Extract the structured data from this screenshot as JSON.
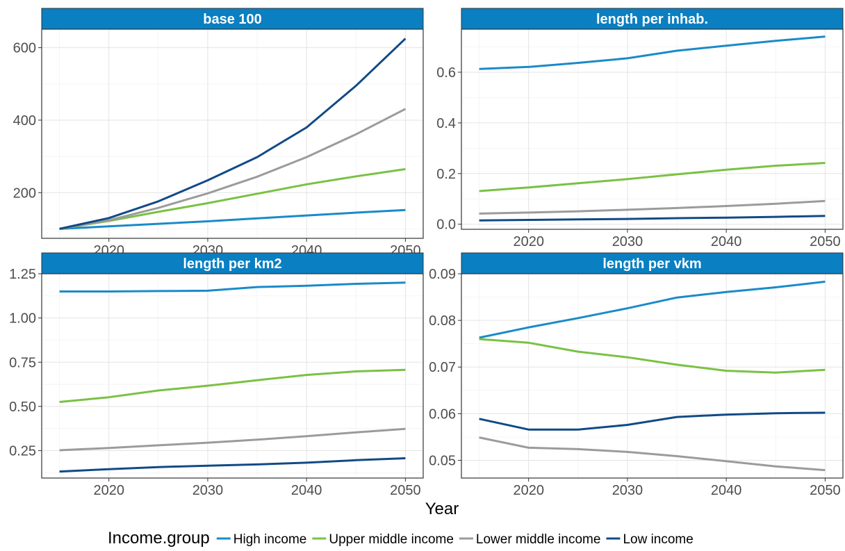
{
  "chart_data": {
    "type": "line",
    "facet_layout": "2x2",
    "xlabel": "Year",
    "x": [
      2015,
      2020,
      2025,
      2030,
      2035,
      2040,
      2045,
      2050
    ],
    "x_ticks": [
      2020,
      2030,
      2040,
      2050
    ],
    "xlim": [
      2013.2,
      2051.8
    ],
    "grid": true,
    "legend": {
      "title": "Income.group",
      "position": "bottom",
      "entries": [
        "High income",
        "Upper middle income",
        "Lower middle income",
        "Low income"
      ]
    },
    "colors": {
      "High income": "#1a8ac9",
      "Upper middle income": "#7ac143",
      "Lower middle income": "#9b9b9b",
      "Low income": "#114a86"
    },
    "strip_color": "#0a7fc1",
    "panels": [
      {
        "title": "base 100",
        "ylim": [
          74,
          651
        ],
        "y_ticks": [
          200,
          400,
          600
        ],
        "y_tick_labels": [
          "200",
          "400",
          "600"
        ],
        "series": [
          {
            "name": "High income",
            "values": [
              100,
              107,
              114,
              121,
              129,
              137,
              145,
              152
            ]
          },
          {
            "name": "Upper middle income",
            "values": [
              100,
              122,
              147,
              171,
              197,
              223,
              245,
              265
            ]
          },
          {
            "name": "Lower middle income",
            "values": [
              100,
              124,
              158,
              198,
              244,
              298,
              361,
              431
            ]
          },
          {
            "name": "Low income",
            "values": [
              100,
              130,
              176,
              234,
              298,
              380,
              495,
              625
            ]
          }
        ]
      },
      {
        "title": "length per inhab.",
        "ylim": [
          -0.02,
          0.77
        ],
        "y_ticks": [
          0.0,
          0.2,
          0.4,
          0.6
        ],
        "y_tick_labels": [
          "0.0",
          "0.2",
          "0.4",
          "0.6"
        ],
        "series": [
          {
            "name": "High income",
            "values": [
              0.613,
              0.621,
              0.637,
              0.655,
              0.685,
              0.705,
              0.724,
              0.741
            ]
          },
          {
            "name": "Upper middle income",
            "values": [
              0.131,
              0.145,
              0.162,
              0.178,
              0.197,
              0.215,
              0.231,
              0.242
            ]
          },
          {
            "name": "Lower middle income",
            "values": [
              0.042,
              0.046,
              0.051,
              0.057,
              0.064,
              0.072,
              0.081,
              0.092
            ]
          },
          {
            "name": "Low income",
            "values": [
              0.015,
              0.017,
              0.019,
              0.021,
              0.024,
              0.026,
              0.029,
              0.033
            ]
          }
        ]
      },
      {
        "title": "length per km2",
        "ylim": [
          0.095,
          1.25
        ],
        "y_ticks": [
          0.25,
          0.5,
          0.75,
          1.0,
          1.25
        ],
        "y_tick_labels": [
          "0.25",
          "0.50",
          "0.75",
          "1.00",
          "1.25"
        ],
        "series": [
          {
            "name": "High income",
            "values": [
              1.15,
              1.15,
              1.152,
              1.154,
              1.175,
              1.182,
              1.193,
              1.2
            ]
          },
          {
            "name": "Upper middle income",
            "values": [
              0.525,
              0.552,
              0.59,
              0.617,
              0.648,
              0.678,
              0.698,
              0.707
            ]
          },
          {
            "name": "Lower middle income",
            "values": [
              0.252,
              0.265,
              0.28,
              0.295,
              0.312,
              0.332,
              0.353,
              0.373
            ]
          },
          {
            "name": "Low income",
            "values": [
              0.132,
              0.145,
              0.157,
              0.165,
              0.172,
              0.182,
              0.196,
              0.207
            ]
          }
        ]
      },
      {
        "title": "length per vkm",
        "ylim": [
          0.0462,
          0.09
        ],
        "y_ticks": [
          0.05,
          0.06,
          0.07,
          0.08,
          0.09
        ],
        "y_tick_labels": [
          "0.05",
          "0.06",
          "0.07",
          "0.08",
          "0.09"
        ],
        "series": [
          {
            "name": "High income",
            "values": [
              0.0763,
              0.0785,
              0.0805,
              0.0826,
              0.0849,
              0.0861,
              0.0871,
              0.0883
            ]
          },
          {
            "name": "Upper middle income",
            "values": [
              0.076,
              0.0752,
              0.0733,
              0.0721,
              0.0705,
              0.0692,
              0.0688,
              0.0694
            ]
          },
          {
            "name": "Lower middle income",
            "values": [
              0.0549,
              0.0527,
              0.0524,
              0.0518,
              0.0509,
              0.0498,
              0.0487,
              0.0479
            ]
          },
          {
            "name": "Low income",
            "values": [
              0.0589,
              0.0566,
              0.0566,
              0.0576,
              0.0593,
              0.0598,
              0.0601,
              0.0602
            ]
          }
        ]
      }
    ]
  }
}
